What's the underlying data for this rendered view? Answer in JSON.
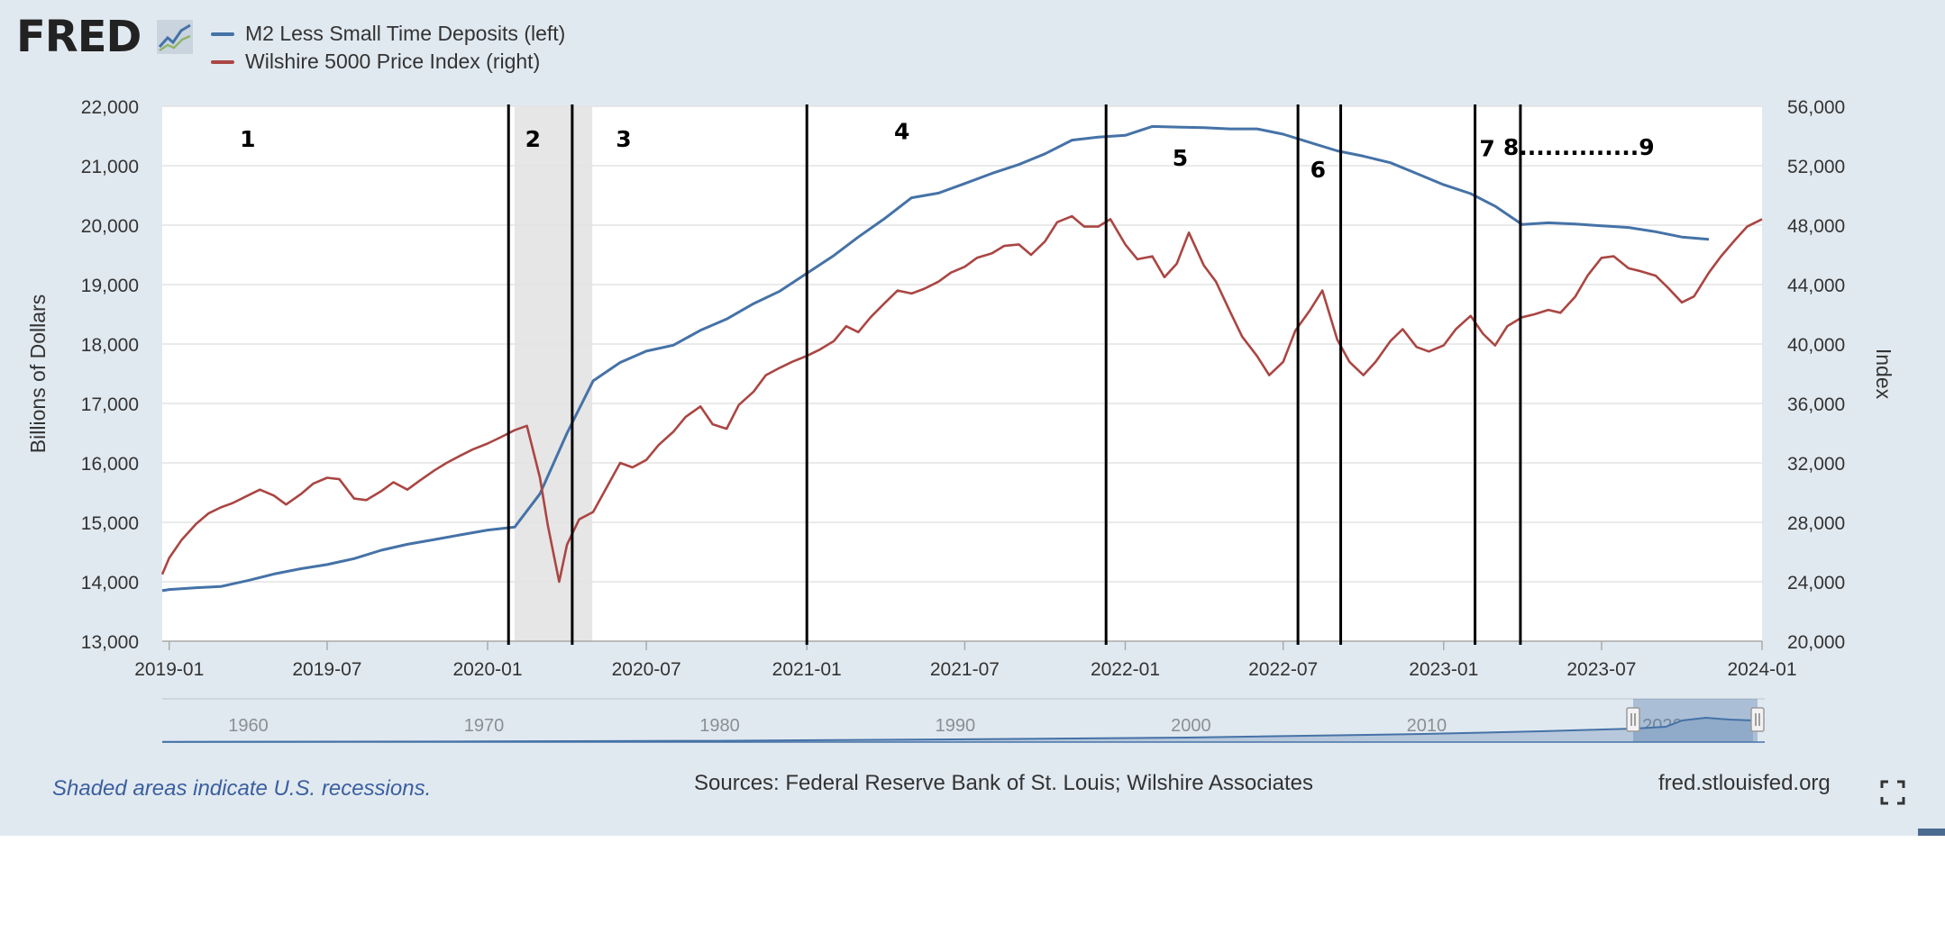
{
  "brand": {
    "logo": "FRED",
    "logo_mark": "chart-line-icon"
  },
  "legend": [
    {
      "label": "M2 Less Small Time Deposits (left)",
      "color": "#4572a7"
    },
    {
      "label": "Wilshire 5000 Price Index (right)",
      "color": "#aa4643"
    }
  ],
  "footer": {
    "recession_note": "Shaded areas indicate U.S. recessions.",
    "sources": "Sources: Federal Reserve Bank of St. Louis; Wilshire Associates",
    "site": "fred.stlouisfed.org",
    "fullscreen_icon": "fullscreen-icon"
  },
  "navigator": {
    "ticks": [
      "1960",
      "1970",
      "1980",
      "1990",
      "2000",
      "2010",
      "2020"
    ]
  },
  "chart_data": {
    "type": "line",
    "title": "",
    "xlabel": "",
    "ylabel_left": "Billions of Dollars",
    "ylabel_right": "Index",
    "x_range": [
      "2018-12-24",
      "2024-01-01"
    ],
    "x_ticks": [
      "2019-01",
      "2019-07",
      "2020-01",
      "2020-07",
      "2021-01",
      "2021-07",
      "2022-01",
      "2022-07",
      "2023-01",
      "2023-07",
      "2024-01"
    ],
    "ylim_left": [
      13000,
      22000
    ],
    "yticks_left": [
      "13,000",
      "14,000",
      "15,000",
      "16,000",
      "17,000",
      "18,000",
      "19,000",
      "20,000",
      "21,000",
      "22,000"
    ],
    "ylim_right": [
      20000,
      56000
    ],
    "yticks_right": [
      "20,000",
      "24,000",
      "28,000",
      "32,000",
      "36,000",
      "40,000",
      "44,000",
      "48,000",
      "52,000",
      "56,000"
    ],
    "grid": true,
    "recession_shading": [
      [
        "2020-02-01",
        "2020-04-30"
      ]
    ],
    "series": [
      {
        "name": "M2 Less Small Time Deposits (left)",
        "axis": "left",
        "color": "#4572a7",
        "x": [
          "2018-12-24",
          "2019-01-01",
          "2019-02-01",
          "2019-03-01",
          "2019-04-01",
          "2019-05-01",
          "2019-06-01",
          "2019-07-01",
          "2019-08-01",
          "2019-09-01",
          "2019-10-01",
          "2019-11-01",
          "2019-12-01",
          "2020-01-01",
          "2020-02-01",
          "2020-03-01",
          "2020-04-01",
          "2020-05-01",
          "2020-06-01",
          "2020-07-01",
          "2020-08-01",
          "2020-09-01",
          "2020-10-01",
          "2020-11-01",
          "2020-12-01",
          "2021-01-01",
          "2021-02-01",
          "2021-03-01",
          "2021-04-01",
          "2021-05-01",
          "2021-06-01",
          "2021-07-01",
          "2021-08-01",
          "2021-09-01",
          "2021-10-01",
          "2021-11-01",
          "2021-12-01",
          "2022-01-01",
          "2022-02-01",
          "2022-03-01",
          "2022-04-01",
          "2022-05-01",
          "2022-06-01",
          "2022-07-01",
          "2022-08-01",
          "2022-09-01",
          "2022-10-01",
          "2022-11-01",
          "2022-12-01",
          "2023-01-01",
          "2023-02-01",
          "2023-03-01",
          "2023-04-01",
          "2023-05-01",
          "2023-06-01",
          "2023-07-01",
          "2023-08-01",
          "2023-09-01",
          "2023-10-01",
          "2023-11-01"
        ],
        "values": [
          13850,
          13870,
          13900,
          13920,
          14020,
          14130,
          14220,
          14290,
          14390,
          14530,
          14630,
          14710,
          14790,
          14870,
          14920,
          15480,
          16500,
          17380,
          17690,
          17880,
          17980,
          18230,
          18420,
          18680,
          18890,
          19190,
          19490,
          19800,
          20120,
          20460,
          20540,
          20700,
          20870,
          21020,
          21200,
          21430,
          21480,
          21510,
          21660,
          21650,
          21640,
          21620,
          21620,
          21530,
          21390,
          21250,
          21160,
          21050,
          20870,
          20680,
          20530,
          20320,
          20010,
          20040,
          20020,
          19990,
          19960,
          19890,
          19800,
          19760
        ]
      },
      {
        "name": "Wilshire 5000 Price Index (right)",
        "axis": "right",
        "color": "#aa4643",
        "x": [
          "2018-12-24",
          "2019-01-01",
          "2019-01-15",
          "2019-02-01",
          "2019-02-15",
          "2019-03-01",
          "2019-03-15",
          "2019-04-01",
          "2019-04-15",
          "2019-05-01",
          "2019-05-15",
          "2019-06-01",
          "2019-06-15",
          "2019-07-01",
          "2019-07-15",
          "2019-08-01",
          "2019-08-15",
          "2019-09-01",
          "2019-09-15",
          "2019-10-01",
          "2019-10-15",
          "2019-11-01",
          "2019-11-15",
          "2019-12-01",
          "2019-12-15",
          "2020-01-01",
          "2020-01-15",
          "2020-02-01",
          "2020-02-15",
          "2020-03-01",
          "2020-03-10",
          "2020-03-23",
          "2020-04-01",
          "2020-04-15",
          "2020-05-01",
          "2020-05-15",
          "2020-06-01",
          "2020-06-15",
          "2020-07-01",
          "2020-07-15",
          "2020-08-01",
          "2020-08-15",
          "2020-09-01",
          "2020-09-15",
          "2020-10-01",
          "2020-10-15",
          "2020-11-01",
          "2020-11-15",
          "2020-12-01",
          "2020-12-15",
          "2021-01-01",
          "2021-01-15",
          "2021-02-01",
          "2021-02-15",
          "2021-03-01",
          "2021-03-15",
          "2021-04-01",
          "2021-04-15",
          "2021-05-01",
          "2021-05-15",
          "2021-06-01",
          "2021-06-15",
          "2021-07-01",
          "2021-07-15",
          "2021-08-01",
          "2021-08-15",
          "2021-09-01",
          "2021-09-15",
          "2021-10-01",
          "2021-10-15",
          "2021-11-01",
          "2021-11-15",
          "2021-12-01",
          "2021-12-15",
          "2022-01-01",
          "2022-01-15",
          "2022-02-01",
          "2022-02-15",
          "2022-03-01",
          "2022-03-15",
          "2022-04-01",
          "2022-04-15",
          "2022-05-01",
          "2022-05-15",
          "2022-06-01",
          "2022-06-15",
          "2022-07-01",
          "2022-07-15",
          "2022-08-01",
          "2022-08-15",
          "2022-09-01",
          "2022-09-15",
          "2022-10-01",
          "2022-10-15",
          "2022-11-01",
          "2022-11-15",
          "2022-12-01",
          "2022-12-15",
          "2023-01-01",
          "2023-01-15",
          "2023-02-01",
          "2023-02-15",
          "2023-03-01",
          "2023-03-15",
          "2023-04-01",
          "2023-04-15",
          "2023-05-01",
          "2023-05-15",
          "2023-06-01",
          "2023-06-15",
          "2023-07-01",
          "2023-07-15",
          "2023-08-01",
          "2023-08-15",
          "2023-09-01",
          "2023-09-15",
          "2023-10-01",
          "2023-10-15",
          "2023-11-01",
          "2023-11-15",
          "2023-12-01",
          "2023-12-15",
          "2024-01-01"
        ],
        "values": [
          24500,
          25600,
          26800,
          27900,
          28600,
          29000,
          29300,
          29800,
          30200,
          29800,
          29200,
          29900,
          30600,
          31000,
          30900,
          29600,
          29500,
          30100,
          30700,
          30200,
          30800,
          31500,
          32000,
          32500,
          32900,
          33300,
          33700,
          34200,
          34500,
          31000,
          27800,
          24000,
          26500,
          28200,
          28700,
          30200,
          32000,
          31700,
          32200,
          33200,
          34100,
          35100,
          35800,
          34600,
          34300,
          35900,
          36800,
          37900,
          38400,
          38800,
          39200,
          39600,
          40200,
          41200,
          40800,
          41800,
          42800,
          43600,
          43400,
          43700,
          44200,
          44800,
          45200,
          45800,
          46100,
          46600,
          46700,
          46000,
          46900,
          48200,
          48600,
          47900,
          47900,
          48400,
          46700,
          45700,
          45900,
          44500,
          45400,
          47500,
          45300,
          44200,
          42200,
          40500,
          39200,
          37900,
          38800,
          40900,
          42300,
          43600,
          40300,
          38800,
          37900,
          38800,
          40200,
          41000,
          39800,
          39500,
          39900,
          41000,
          41900,
          40700,
          39900,
          41200,
          41800,
          42000,
          42300,
          42100,
          43200,
          44600,
          45800,
          45900,
          45100,
          44900,
          44600,
          43800,
          42800,
          43200,
          44800,
          45900,
          47000,
          47900,
          48400
        ]
      }
    ],
    "annotations": {
      "vertical_lines": [
        "2020-01-25",
        "2020-04-07",
        "2021-01-01",
        "2021-12-10",
        "2022-07-18",
        "2022-09-05",
        "2023-02-06",
        "2023-03-30"
      ],
      "labels": [
        {
          "text": "1",
          "x": "2019-04-01",
          "y_left": 21320
        },
        {
          "text": "2",
          "x": "2020-02-22",
          "y_left": 21320
        },
        {
          "text": "3",
          "x": "2020-06-05",
          "y_left": 21320
        },
        {
          "text": "4",
          "x": "2021-04-20",
          "y_left": 21450
        },
        {
          "text": "5",
          "x": "2022-03-05",
          "y_left": 21000
        },
        {
          "text": "6",
          "x": "2022-08-10",
          "y_left": 20800
        },
        {
          "text": "7",
          "x": "2023-02-20",
          "y_left": 21160
        },
        {
          "text": "8..............9",
          "x": "2023-06-05",
          "y_left": 21180
        }
      ]
    }
  }
}
